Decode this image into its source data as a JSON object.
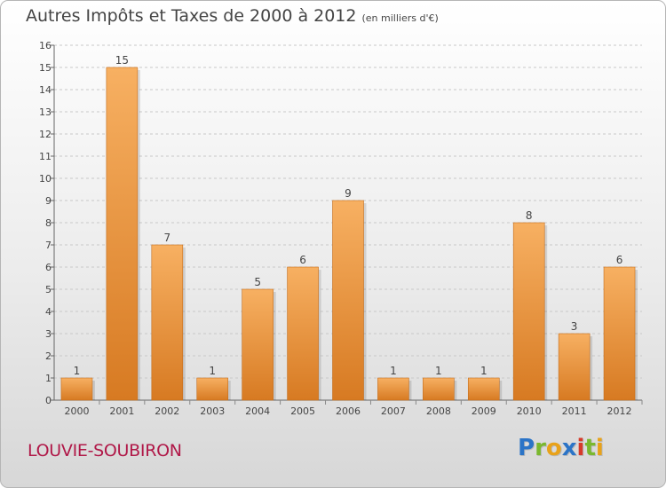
{
  "title": "Autres Impôts et Taxes de 2000 à 2012",
  "subtitle": "(en milliers d'€)",
  "commune": "LOUVIE-SOUBIRON",
  "logo": {
    "text": "Proxiti",
    "colors": [
      "#2b74c7",
      "#7ab82e",
      "#e8a21a",
      "#2b74c7",
      "#d63a2a",
      "#7ab82e",
      "#e8a21a"
    ]
  },
  "colors": {
    "bar": "#f0953b",
    "bar_light": "#f7b062",
    "bar_dark": "#d77a22",
    "grid": "#c8c8c8",
    "label": "#444444",
    "commune": "#b01848"
  },
  "chart_data": {
    "type": "bar",
    "title": "Autres Impôts et Taxes de 2000 à 2012",
    "subtitle": "(en milliers d'€)",
    "xlabel": "",
    "ylabel": "",
    "categories": [
      "2000",
      "2001",
      "2002",
      "2003",
      "2004",
      "2005",
      "2006",
      "2007",
      "2008",
      "2009",
      "2010",
      "2011",
      "2012"
    ],
    "values": [
      1,
      15,
      7,
      1,
      5,
      6,
      9,
      1,
      1,
      1,
      8,
      3,
      6
    ],
    "yticks": [
      "0",
      "1",
      "2",
      "3",
      "4",
      "5",
      "6",
      "7",
      "8",
      "9",
      "10",
      "11",
      "12",
      "13",
      "14",
      "15",
      "16"
    ],
    "ylim": [
      0,
      16
    ],
    "grid": true,
    "data_labels": true,
    "legend": "none"
  }
}
